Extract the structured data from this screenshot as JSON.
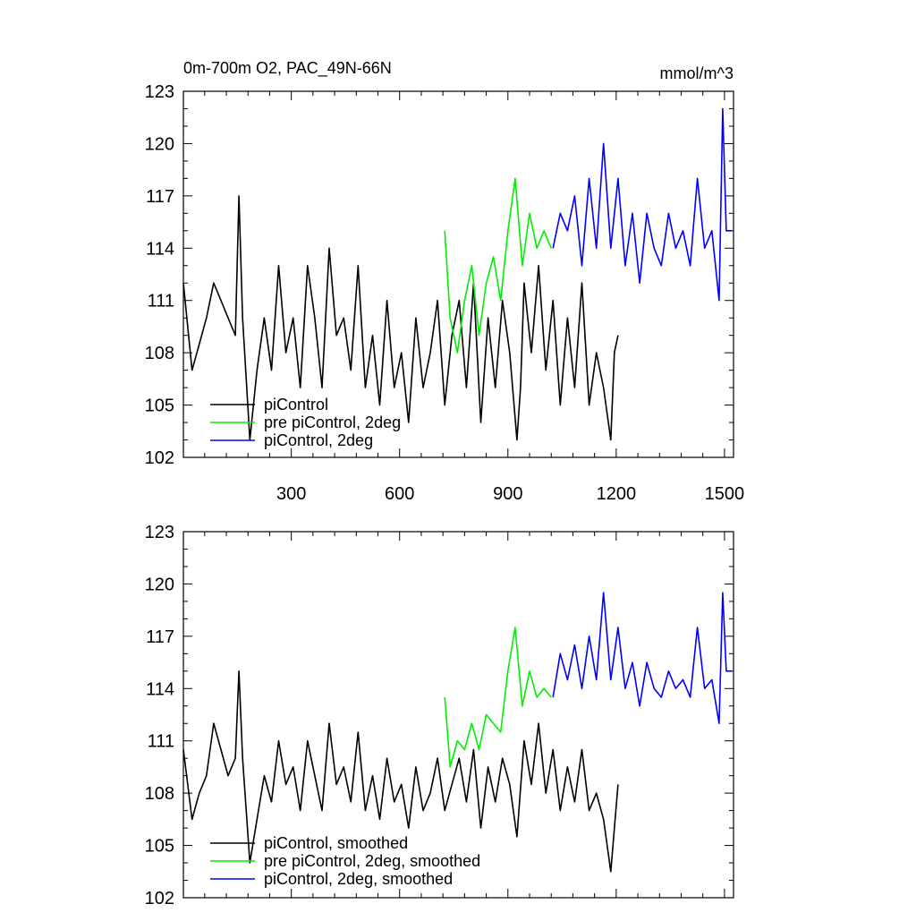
{
  "chart_data": [
    {
      "type": "line",
      "title": "0m-700m O2, PAC_49N-66N",
      "units": "mmol/m^3",
      "xlabel": "",
      "ylabel": "",
      "xlim": [
        1,
        1525
      ],
      "ylim": [
        102,
        123
      ],
      "yticks": [
        102,
        105,
        108,
        111,
        114,
        117,
        120,
        123
      ],
      "yticks_labels": [
        "102",
        "105",
        "108",
        "111",
        "114",
        "117",
        "120",
        "123"
      ],
      "xticks": [
        300,
        600,
        900,
        1200,
        1500
      ],
      "xticks_labels": [
        "300",
        "600",
        "900",
        "1200",
        "1500"
      ],
      "legend_position": "bottom-left",
      "series": [
        {
          "name": "piControl",
          "color": "#000000",
          "x": [
            1,
            25,
            45,
            65,
            85,
            105,
            125,
            145,
            155,
            165,
            185,
            205,
            225,
            245,
            265,
            285,
            305,
            325,
            345,
            365,
            385,
            405,
            425,
            445,
            465,
            485,
            505,
            525,
            545,
            565,
            585,
            605,
            625,
            645,
            665,
            685,
            705,
            725,
            745,
            765,
            785,
            805,
            825,
            845,
            865,
            885,
            905,
            925,
            935,
            945,
            965,
            985,
            1005,
            1025,
            1045,
            1065,
            1085,
            1105,
            1125,
            1145,
            1165,
            1185,
            1195,
            1205
          ],
          "values": [
            112,
            107,
            108.5,
            110,
            112,
            111,
            110,
            109,
            117,
            110,
            103,
            107,
            110,
            107,
            113,
            108,
            110,
            106,
            113,
            110,
            106,
            114,
            109,
            110,
            107,
            113,
            106,
            109,
            105,
            111,
            106,
            108,
            104,
            110,
            106,
            108,
            111,
            105,
            109,
            111,
            106,
            112,
            104,
            110,
            106,
            111,
            108,
            103,
            106,
            112,
            108,
            113,
            107,
            111,
            105,
            110,
            106,
            112,
            105,
            108,
            106,
            103,
            108,
            109
          ]
        },
        {
          "name": "pre piControl, 2deg",
          "color": "#00ee00",
          "x": [
            725,
            740,
            760,
            780,
            800,
            820,
            840,
            860,
            880,
            900,
            920,
            940,
            960,
            980,
            1000,
            1020
          ],
          "values": [
            115,
            110,
            108,
            111,
            113,
            109,
            112,
            113.5,
            111,
            115,
            118,
            113,
            116,
            114,
            115,
            114
          ]
        },
        {
          "name": "piControl, 2deg",
          "color": "#0000ff",
          "x": [
            1025,
            1045,
            1065,
            1085,
            1105,
            1125,
            1145,
            1165,
            1185,
            1205,
            1225,
            1245,
            1265,
            1285,
            1305,
            1325,
            1345,
            1365,
            1385,
            1405,
            1425,
            1445,
            1465,
            1485,
            1495,
            1505,
            1520
          ],
          "values": [
            114,
            116,
            115,
            117,
            113,
            118,
            114,
            120,
            114,
            118,
            113,
            116,
            112,
            116,
            114,
            113,
            116,
            114,
            115,
            113,
            118,
            114,
            115,
            111,
            122,
            115,
            115
          ]
        }
      ]
    },
    {
      "type": "line",
      "title": "",
      "xlabel": "",
      "ylabel": "",
      "xlim": [
        1,
        1525
      ],
      "ylim": [
        102,
        123
      ],
      "yticks": [
        102,
        105,
        108,
        111,
        114,
        117,
        120,
        123
      ],
      "yticks_labels": [
        "102",
        "105",
        "108",
        "111",
        "114",
        "117",
        "120",
        "123"
      ],
      "xticks": [
        300,
        600,
        900,
        1200,
        1500
      ],
      "legend_position": "bottom-left",
      "series": [
        {
          "name": "piControl, smoothed",
          "color": "#000000",
          "x": [
            1,
            25,
            45,
            65,
            85,
            105,
            125,
            145,
            155,
            165,
            185,
            205,
            225,
            245,
            265,
            285,
            305,
            325,
            345,
            365,
            385,
            405,
            425,
            445,
            465,
            485,
            505,
            525,
            545,
            565,
            585,
            605,
            625,
            645,
            665,
            685,
            705,
            725,
            745,
            765,
            785,
            805,
            825,
            845,
            865,
            885,
            905,
            925,
            945,
            965,
            985,
            1005,
            1025,
            1045,
            1065,
            1085,
            1105,
            1125,
            1145,
            1165,
            1185,
            1205
          ],
          "values": [
            110.5,
            106.5,
            108,
            109,
            112,
            110.5,
            109,
            110,
            115,
            110,
            104,
            106.5,
            109,
            107.5,
            111,
            108.5,
            109.5,
            107,
            111,
            109,
            107,
            112,
            108.5,
            109.5,
            107.5,
            111.5,
            107,
            109,
            106.5,
            110,
            107.5,
            108.5,
            106,
            109.5,
            107,
            108,
            110,
            107,
            108.5,
            110,
            107.5,
            110.5,
            106,
            109.5,
            107.5,
            110,
            108.5,
            105.5,
            111,
            108.5,
            112,
            108,
            110.5,
            107,
            109.5,
            107.5,
            110.5,
            107,
            108,
            106.5,
            103.5,
            108.5
          ]
        },
        {
          "name": "pre piControl, 2deg, smoothed",
          "color": "#00ee00",
          "x": [
            725,
            740,
            760,
            780,
            800,
            820,
            840,
            860,
            880,
            900,
            920,
            940,
            960,
            980,
            1000,
            1020
          ],
          "values": [
            113.5,
            109.5,
            111,
            110.5,
            112,
            110.5,
            112.5,
            112,
            111.5,
            115,
            117.5,
            113,
            115,
            113.5,
            114,
            113.5
          ]
        },
        {
          "name": "piControl, 2deg, smoothed",
          "color": "#0000ff",
          "x": [
            1025,
            1045,
            1065,
            1085,
            1105,
            1125,
            1145,
            1165,
            1185,
            1205,
            1225,
            1245,
            1265,
            1285,
            1305,
            1325,
            1345,
            1365,
            1385,
            1405,
            1425,
            1445,
            1465,
            1485,
            1495,
            1505,
            1520
          ],
          "values": [
            113.5,
            116,
            114.5,
            116.5,
            114,
            117,
            114.5,
            119.5,
            114.5,
            117.5,
            114,
            115.5,
            113,
            115.5,
            114,
            113.5,
            115,
            114,
            114.5,
            113.5,
            117.5,
            114,
            114.5,
            112,
            119.5,
            115,
            115
          ]
        }
      ]
    }
  ]
}
